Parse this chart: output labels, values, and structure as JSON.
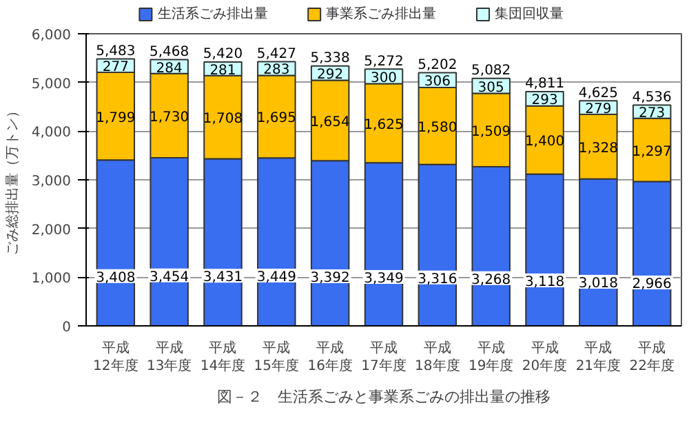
{
  "chart_data": {
    "type": "bar",
    "stacked": true,
    "title": "図－２　生活系ごみと事業系ごみの排出量の推移",
    "ylabel": "ごみ総排出量（万トン）",
    "categories": [
      "平成12年度",
      "平成13年度",
      "平成14年度",
      "平成15年度",
      "平成16年度",
      "平成17年度",
      "平成18年度",
      "平成19年度",
      "平成20年度",
      "平成21年度",
      "平成22年度"
    ],
    "series": [
      {
        "name": "生活系ごみ排出量",
        "color": "#3a6ef0",
        "values": [
          3408,
          3454,
          3431,
          3449,
          3392,
          3349,
          3316,
          3268,
          3118,
          3018,
          2966
        ],
        "value_labels": [
          "3,408",
          "3,454",
          "3,431",
          "3,449",
          "3,392",
          "3,349",
          "3,316",
          "3,268",
          "3,118",
          "3,018",
          "2,966"
        ]
      },
      {
        "name": "事業系ごみ排出量",
        "color": "#ffc000",
        "values": [
          1799,
          1730,
          1708,
          1695,
          1654,
          1625,
          1580,
          1509,
          1400,
          1328,
          1297
        ],
        "value_labels": [
          "1,799",
          "1,730",
          "1,708",
          "1,695",
          "1,654",
          "1,625",
          "1,580",
          "1,509",
          "1,400",
          "1,328",
          "1,297"
        ]
      },
      {
        "name": "集団回収量",
        "color": "#ccffff",
        "values": [
          277,
          284,
          281,
          283,
          292,
          300,
          306,
          305,
          293,
          279,
          273
        ],
        "value_labels": [
          "277",
          "284",
          "281",
          "283",
          "292",
          "300",
          "306",
          "305",
          "293",
          "279",
          "273"
        ]
      }
    ],
    "totals": [
      "5,483",
      "5,468",
      "5,420",
      "5,427",
      "5,338",
      "5,272",
      "5,202",
      "5,082",
      "4,811",
      "4,625",
      "4,536"
    ],
    "ylim": [
      0,
      6000
    ],
    "yticks": [
      {
        "value": 0,
        "label": "0"
      },
      {
        "value": 1000,
        "label": "1,000"
      },
      {
        "value": 2000,
        "label": "2,000"
      },
      {
        "value": 3000,
        "label": "3,000"
      },
      {
        "value": 4000,
        "label": "4,000"
      },
      {
        "value": 5000,
        "label": "5,000"
      },
      {
        "value": 6000,
        "label": "6,000"
      }
    ],
    "grid": "y",
    "legend": "top"
  }
}
